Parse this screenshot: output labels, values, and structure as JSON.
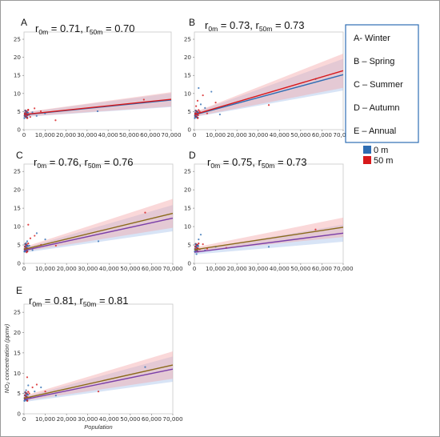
{
  "colors": {
    "series_0m": "#2e6db3",
    "series_50m": "#d7191c",
    "band_0m": "#a9c4ea",
    "band_50m": "#f4a9aa",
    "legend_border": "#2e6db3"
  },
  "legend": {
    "seasons": [
      "A- Winter",
      "B – Spring",
      "C – Summer",
      "D – Autumn",
      "E – Annual"
    ],
    "series_labels": [
      "0 m",
      "50 m"
    ]
  },
  "axis_labels": {
    "x": "Population",
    "y": "NO₂ concentration (ppmv)"
  },
  "chart_data": [
    {
      "panel": "A",
      "type": "scatter",
      "r_0m": "0.71",
      "r_50m": "0.70",
      "xlim": [
        0,
        70000
      ],
      "ylim": [
        0,
        27
      ],
      "xticks": [
        "0",
        "10,000",
        "20,000",
        "30,000",
        "40,000",
        "50,000",
        "60,000",
        "70,000"
      ],
      "yticks": [
        0,
        5,
        10,
        15,
        20,
        25
      ],
      "fit_0m": {
        "x": [
          0,
          70000
        ],
        "y": [
          4.1,
          8.2
        ]
      },
      "fit_50m": {
        "x": [
          0,
          70000
        ],
        "y": [
          4.2,
          8.4
        ]
      },
      "points": [
        [
          500,
          4.3
        ],
        [
          800,
          3.7
        ],
        [
          1000,
          5.2
        ],
        [
          1200,
          4.6
        ],
        [
          1500,
          3.9
        ],
        [
          2000,
          5.5
        ],
        [
          2500,
          4.1
        ],
        [
          3000,
          3.5
        ],
        [
          4000,
          4.8
        ],
        [
          5000,
          5.9
        ],
        [
          6000,
          3.8
        ],
        [
          8000,
          5.1
        ],
        [
          10000,
          4.5
        ],
        [
          15000,
          2.6
        ],
        [
          35000,
          5.1
        ],
        [
          57000,
          8.3
        ]
      ]
    },
    {
      "panel": "B",
      "type": "scatter",
      "r_0m": "0.73",
      "r_50m": "0.73",
      "xlim": [
        0,
        70000
      ],
      "ylim": [
        0,
        27
      ],
      "xticks": [
        "0",
        "10,000",
        "20,000",
        "30,000",
        "40,000",
        "50,000",
        "60,000",
        "70,000"
      ],
      "yticks": [
        0,
        5,
        10,
        15,
        20,
        25
      ],
      "fit_0m": {
        "x": [
          0,
          70000
        ],
        "y": [
          4.1,
          15.2
        ]
      },
      "fit_50m": {
        "x": [
          0,
          70000
        ],
        "y": [
          4.2,
          16.3
        ]
      },
      "points": [
        [
          500,
          3.5
        ],
        [
          800,
          6.5
        ],
        [
          1000,
          4.2
        ],
        [
          1500,
          8.0
        ],
        [
          2000,
          11.5
        ],
        [
          2500,
          5.0
        ],
        [
          3000,
          7.0
        ],
        [
          4000,
          9.5
        ],
        [
          5000,
          6.0
        ],
        [
          6000,
          4.5
        ],
        [
          8000,
          10.5
        ],
        [
          10000,
          7.5
        ],
        [
          12000,
          4.2
        ],
        [
          35000,
          6.8
        ],
        [
          57000,
          14.0
        ]
      ]
    },
    {
      "panel": "C",
      "type": "scatter",
      "r_0m": "0.76",
      "r_50m": "0.76",
      "xlim": [
        0,
        70000
      ],
      "ylim": [
        0,
        27
      ],
      "xticks": [
        "0",
        "10,000",
        "20,000",
        "30,000",
        "40,000",
        "50,000",
        "60,000",
        "70,000"
      ],
      "yticks": [
        0,
        5,
        10,
        15,
        20,
        25
      ],
      "fit_0m": {
        "x": [
          0,
          70000
        ],
        "y": [
          3.5,
          12.3
        ]
      },
      "fit_50m": {
        "x": [
          0,
          70000
        ],
        "y": [
          3.8,
          13.6
        ]
      },
      "points": [
        [
          500,
          3.2
        ],
        [
          800,
          4.5
        ],
        [
          1000,
          5.5
        ],
        [
          1200,
          3.0
        ],
        [
          1500,
          6.0
        ],
        [
          2000,
          10.5
        ],
        [
          2500,
          4.8
        ],
        [
          3000,
          6.8
        ],
        [
          4000,
          3.6
        ],
        [
          5000,
          7.5
        ],
        [
          6000,
          8.2
        ],
        [
          8000,
          5.0
        ],
        [
          10000,
          6.5
        ],
        [
          15000,
          4.8
        ],
        [
          35000,
          6.0
        ],
        [
          57000,
          13.8
        ]
      ]
    },
    {
      "panel": "D",
      "type": "scatter",
      "r_0m": "0.75",
      "r_50m": "0.73",
      "xlim": [
        0,
        70000
      ],
      "ylim": [
        0,
        27
      ],
      "xticks": [
        "0",
        "10,000",
        "20,000",
        "30,000",
        "40,000",
        "50,000",
        "60,000",
        "70,000"
      ],
      "yticks": [
        0,
        5,
        10,
        15,
        20,
        25
      ],
      "fit_0m": {
        "x": [
          0,
          70000
        ],
        "y": [
          3.0,
          8.2
        ]
      },
      "fit_50m": {
        "x": [
          0,
          70000
        ],
        "y": [
          3.7,
          9.8
        ]
      },
      "points": [
        [
          500,
          3.2
        ],
        [
          800,
          4.5
        ],
        [
          1000,
          2.5
        ],
        [
          1500,
          5.0
        ],
        [
          2000,
          6.5
        ],
        [
          2500,
          3.8
        ],
        [
          3000,
          7.8
        ],
        [
          4000,
          5.2
        ],
        [
          5000,
          3.5
        ],
        [
          6000,
          4.0
        ],
        [
          10000,
          4.5
        ],
        [
          15000,
          4.2
        ],
        [
          35000,
          4.5
        ],
        [
          57000,
          9.2
        ]
      ]
    },
    {
      "panel": "E",
      "type": "scatter",
      "r_0m": "0.81",
      "r_50m": "0.81",
      "xlim": [
        0,
        70000
      ],
      "ylim": [
        0,
        27
      ],
      "xticks": [
        "0",
        "10,000",
        "20,000",
        "30,000",
        "40,000",
        "50,000",
        "60,000",
        "70,000"
      ],
      "yticks": [
        0,
        5,
        10,
        15,
        20,
        25
      ],
      "fit_0m": {
        "x": [
          0,
          70000
        ],
        "y": [
          3.5,
          11.0
        ]
      },
      "fit_50m": {
        "x": [
          0,
          70000
        ],
        "y": [
          3.8,
          12.0
        ]
      },
      "points": [
        [
          500,
          3.5
        ],
        [
          800,
          4.5
        ],
        [
          1000,
          5.8
        ],
        [
          1500,
          9.0
        ],
        [
          2000,
          7.0
        ],
        [
          2500,
          5.0
        ],
        [
          3000,
          4.0
        ],
        [
          4000,
          6.5
        ],
        [
          5000,
          5.5
        ],
        [
          6000,
          7.2
        ],
        [
          8000,
          6.5
        ],
        [
          10000,
          5.5
        ],
        [
          15000,
          4.5
        ],
        [
          35000,
          5.5
        ],
        [
          57000,
          11.5
        ]
      ]
    }
  ]
}
